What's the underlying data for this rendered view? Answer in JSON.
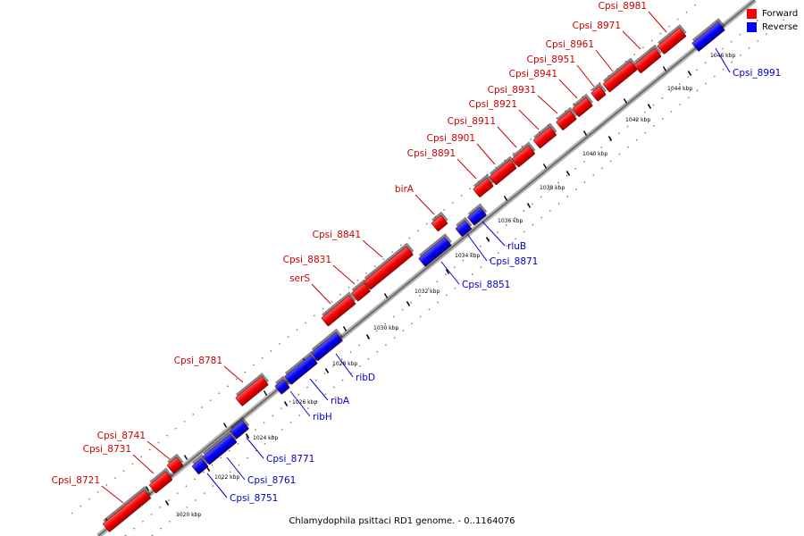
{
  "title": "Chlamydophila psittaci RD1 genome. - 0..1164076",
  "legend": [
    {
      "label": "Forward",
      "color": "#ff0000"
    },
    {
      "label": "Reverse",
      "color": "#0000ff"
    }
  ],
  "colors": {
    "forward": "#ff1a1a",
    "reverse": "#1a1aff",
    "forward_label": "#cc0000",
    "reverse_label": "#0000cc",
    "backbone": "#9a9a9a"
  },
  "ticks": [
    "1020 kbp",
    "1022 kbp",
    "1024 kbp",
    "1026 kbp",
    "1028 kbp",
    "1030 kbp",
    "1032 kbp",
    "1034 kbp",
    "1036 kbp",
    "1038 kbp",
    "1040 kbp",
    "1042 kbp",
    "1044 kbp",
    "1046 kbp"
  ],
  "genes_forward": [
    "Cpsi_8721",
    "Cpsi_8731",
    "Cpsi_8741",
    "Cpsi_8781",
    "serS",
    "Cpsi_8831",
    "Cpsi_8841",
    "birA",
    "Cpsi_8891",
    "Cpsi_8901",
    "Cpsi_8911",
    "Cpsi_8921",
    "Cpsi_8931",
    "Cpsi_8941",
    "Cpsi_8951",
    "Cpsi_8961",
    "Cpsi_8971",
    "Cpsi_8981"
  ],
  "genes_reverse": [
    "Cpsi_8751",
    "Cpsi_8761",
    "Cpsi_8771",
    "ribH",
    "ribA",
    "ribD",
    "Cpsi_8851",
    "Cpsi_8871",
    "rluB",
    "Cpsi_8991"
  ]
}
